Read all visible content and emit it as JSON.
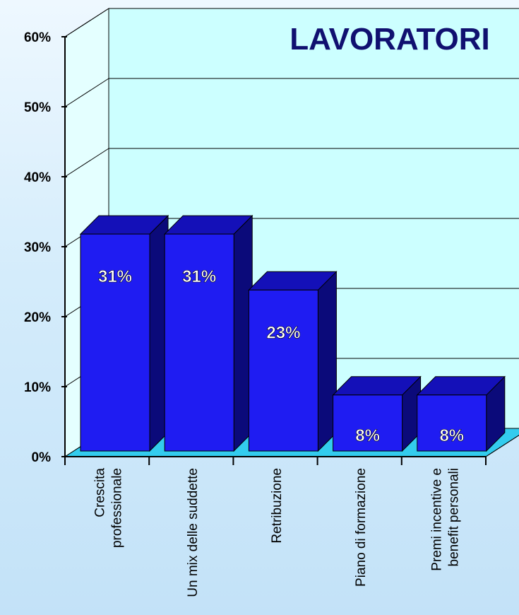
{
  "chart_data": {
    "type": "bar",
    "title": "LAVORATORI",
    "categories": [
      [
        "Crescita",
        "professionale"
      ],
      [
        "Un mix delle suddette"
      ],
      [
        "Retribuzione"
      ],
      [
        "Piano di formazione"
      ],
      [
        "Premi incentive e",
        "benefit personali"
      ]
    ],
    "values": [
      31,
      31,
      23,
      8,
      8
    ],
    "value_labels": [
      "31%",
      "31%",
      "23%",
      "8%",
      "8%"
    ],
    "y_ticks": [
      "0%",
      "10%",
      "20%",
      "30%",
      "40%",
      "50%",
      "60%"
    ],
    "ylim": [
      0,
      60
    ],
    "grid": true,
    "three_d": true,
    "colors": {
      "bar_front": "#1f1cf2",
      "bar_top": "#1410b8",
      "bar_side": "#0b0a7a",
      "wall": "#ccffff",
      "floor": "#33ccee",
      "title": "#101070",
      "label_value": "#ffffff"
    }
  }
}
